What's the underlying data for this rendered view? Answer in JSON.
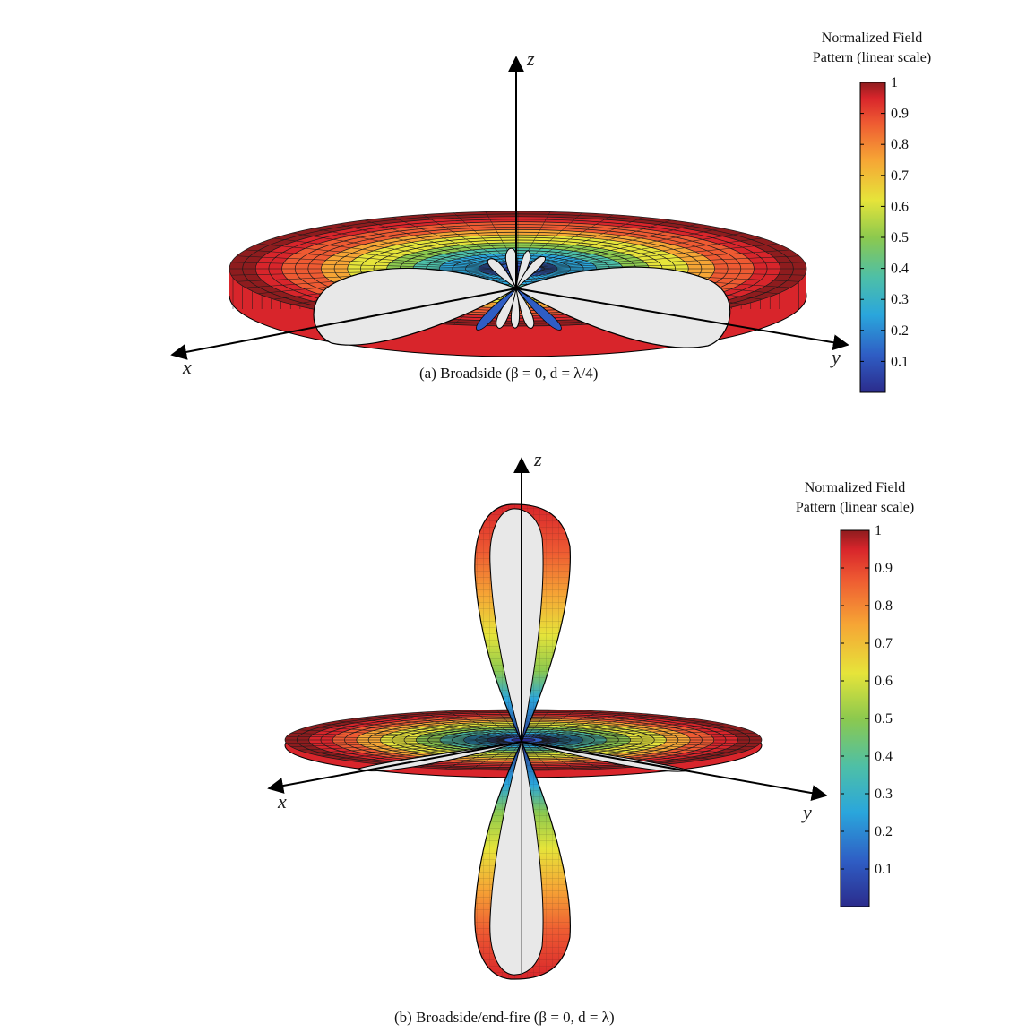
{
  "figures": [
    {
      "id": "a",
      "caption": "(a) Broadside (β = 0, d = λ/4)",
      "axes": {
        "x": "x",
        "y": "y",
        "z": "z"
      },
      "colorbar": {
        "title_line1": "Normalized Field",
        "title_line2": "Pattern (linear scale)",
        "ticks": [
          "1",
          "0.9",
          "0.8",
          "0.7",
          "0.6",
          "0.5",
          "0.4",
          "0.3",
          "0.2",
          "0.1"
        ]
      }
    },
    {
      "id": "b",
      "caption": "(b) Broadside/end-fire (β = 0, d = λ)",
      "axes": {
        "x": "x",
        "y": "y",
        "z": "z"
      },
      "colorbar": {
        "title_line1": "Normalized Field",
        "title_line2": "Pattern (linear scale)",
        "ticks": [
          "1",
          "0.9",
          "0.8",
          "0.7",
          "0.6",
          "0.5",
          "0.4",
          "0.3",
          "0.2",
          "0.1"
        ]
      }
    }
  ],
  "colormap": [
    "#2b2c8c",
    "#2f5dc4",
    "#2aa6dc",
    "#4dbfa8",
    "#8cc94e",
    "#e6e43a",
    "#f6a535",
    "#ee5a32",
    "#d8252b",
    "#8e1c1e"
  ]
}
